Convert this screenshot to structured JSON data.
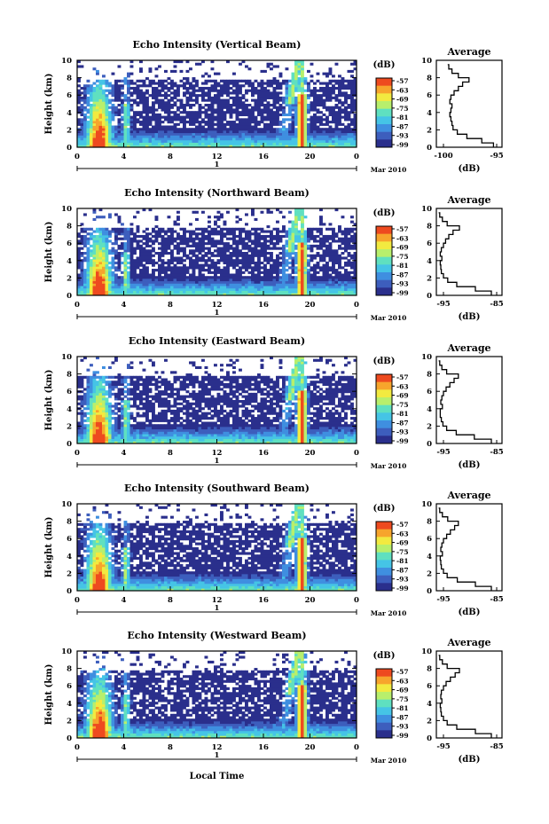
{
  "units": {
    "height_axis": "Height (km)",
    "db_unit": "(dB)",
    "average_title": "Average",
    "date_label": "Mar 2010",
    "day_label": "1",
    "x_axis_title": "Local Time"
  },
  "x_ticks": [
    "0",
    "4",
    "8",
    "12",
    "16",
    "20",
    "0"
  ],
  "y_ticks": [
    "0",
    "2",
    "4",
    "6",
    "8",
    "10"
  ],
  "colorbar_ticks": [
    "-57",
    "-63",
    "-69",
    "-75",
    "-81",
    "-87",
    "-93",
    "-99"
  ],
  "colors": {
    "scale": [
      "#2a2f8c",
      "#3d5ebd",
      "#3f8fe0",
      "#45c4e6",
      "#5fe0c0",
      "#b8ef6c",
      "#f2ea40",
      "#f7a52c",
      "#ee4a1f"
    ],
    "background": "#ffffff"
  },
  "chart_data": [
    {
      "type": "heatmap",
      "title": "Echo Intensity (Vertical Beam)",
      "xlabel": "",
      "ylabel": "Height (km)",
      "xlim": [
        0,
        24
      ],
      "ylim": [
        0,
        10
      ],
      "colorbar_range": [
        -99,
        -57
      ],
      "average_profile": {
        "xticks": [
          "-100",
          "-95"
        ],
        "xlabel": "(dB)",
        "height_km": [
          0,
          0.5,
          1,
          1.5,
          2,
          2.5,
          3,
          3.5,
          4,
          4.5,
          5,
          5.5,
          6,
          6.5,
          7,
          7.5,
          8,
          8.5,
          9,
          9.5
        ],
        "db": [
          -95.3,
          -96.4,
          -97.8,
          -98.7,
          -99.1,
          -99.2,
          -99.3,
          -99.4,
          -99.3,
          -99.2,
          -99.4,
          -99.3,
          -99.0,
          -98.6,
          -98.2,
          -97.6,
          -98.6,
          -99.2,
          -99.5,
          -99.6
        ]
      }
    },
    {
      "type": "heatmap",
      "title": "Echo Intensity (Northward Beam)",
      "xlabel": "",
      "ylabel": "Height (km)",
      "xlim": [
        0,
        24
      ],
      "ylim": [
        0,
        10
      ],
      "colorbar_range": [
        -99,
        -57
      ],
      "average_profile": {
        "xticks": [
          "-95",
          "-85"
        ],
        "xlabel": "(dB)",
        "height_km": [
          0,
          0.5,
          1,
          1.5,
          2,
          2.5,
          3,
          3.5,
          4,
          4.5,
          5,
          5.5,
          6,
          6.5,
          7,
          7.5,
          8,
          8.5,
          9,
          9.5
        ],
        "db": [
          -86.0,
          -89.0,
          -92.5,
          -94.2,
          -95.0,
          -95.4,
          -95.5,
          -95.6,
          -95.3,
          -95.6,
          -95.4,
          -95.0,
          -94.6,
          -94.0,
          -93.2,
          -92.0,
          -94.3,
          -95.2,
          -95.7,
          -95.9
        ]
      }
    },
    {
      "type": "heatmap",
      "title": "Echo Intensity (Eastward Beam)",
      "xlabel": "",
      "ylabel": "Height (km)",
      "xlim": [
        0,
        24
      ],
      "ylim": [
        0,
        10
      ],
      "colorbar_range": [
        -99,
        -57
      ],
      "average_profile": {
        "xticks": [
          "-95",
          "-85"
        ],
        "xlabel": "(dB)",
        "height_km": [
          0,
          0.5,
          1,
          1.5,
          2,
          2.5,
          3,
          3.5,
          4,
          4.5,
          5,
          5.5,
          6,
          6.5,
          7,
          7.5,
          8,
          8.5,
          9,
          9.5
        ],
        "db": [
          -86.0,
          -89.2,
          -92.6,
          -94.4,
          -95.1,
          -95.4,
          -95.6,
          -95.6,
          -95.2,
          -95.5,
          -95.3,
          -95.0,
          -94.5,
          -93.8,
          -93.0,
          -92.2,
          -94.4,
          -95.3,
          -95.7,
          -95.9
        ]
      }
    },
    {
      "type": "heatmap",
      "title": "Echo Intensity (Southward Beam)",
      "xlabel": "",
      "ylabel": "Height (km)",
      "xlim": [
        0,
        24
      ],
      "ylim": [
        0,
        10
      ],
      "colorbar_range": [
        -99,
        -57
      ],
      "average_profile": {
        "xticks": [
          "-95",
          "-85"
        ],
        "xlabel": "(dB)",
        "height_km": [
          0,
          0.5,
          1,
          1.5,
          2,
          2.5,
          3,
          3.5,
          4,
          4.5,
          5,
          5.5,
          6,
          6.5,
          7,
          7.5,
          8,
          8.5,
          9,
          9.5
        ],
        "db": [
          -86.0,
          -89.0,
          -92.4,
          -94.3,
          -95.0,
          -95.4,
          -95.5,
          -95.6,
          -95.2,
          -95.5,
          -95.3,
          -95.0,
          -94.4,
          -93.7,
          -92.9,
          -92.2,
          -94.2,
          -95.2,
          -95.7,
          -95.9
        ]
      }
    },
    {
      "type": "heatmap",
      "title": "Echo Intensity (Westward Beam)",
      "xlabel": "Local Time",
      "ylabel": "Height (km)",
      "xlim": [
        0,
        24
      ],
      "ylim": [
        0,
        10
      ],
      "colorbar_range": [
        -99,
        -57
      ],
      "average_profile": {
        "xticks": [
          "-95",
          "-85"
        ],
        "xlabel": "(dB)",
        "height_km": [
          0,
          0.5,
          1,
          1.5,
          2,
          2.5,
          3,
          3.5,
          4,
          4.5,
          5,
          5.5,
          6,
          6.5,
          7,
          7.5,
          8,
          8.5,
          9,
          9.5
        ],
        "db": [
          -86.0,
          -89.0,
          -92.5,
          -94.3,
          -95.0,
          -95.4,
          -95.5,
          -95.6,
          -95.3,
          -95.5,
          -95.4,
          -95.0,
          -94.5,
          -93.7,
          -92.8,
          -92.0,
          -94.3,
          -95.2,
          -95.7,
          -95.9
        ]
      }
    }
  ]
}
